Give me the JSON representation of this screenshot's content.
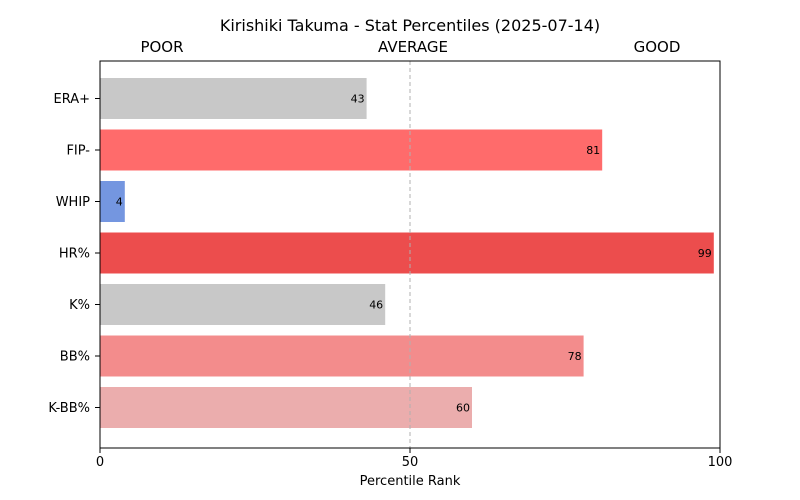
{
  "chart_data": {
    "type": "bar",
    "orientation": "horizontal",
    "title": "Kirishiki Takuma - Stat Percentiles (2025-07-14)",
    "xlabel": "Percentile Rank",
    "ylabel": "",
    "xlim": [
      0,
      100
    ],
    "xticks": [
      "0",
      "50",
      "100"
    ],
    "reference_line": 50,
    "grid": false,
    "zone_labels": [
      "POOR",
      "AVERAGE",
      "GOOD"
    ],
    "categories": [
      "ERA+",
      "FIP-",
      "WHIP",
      "HR%",
      "K%",
      "BB%",
      "K-BB%"
    ],
    "values": [
      43,
      81,
      4,
      99,
      46,
      78,
      60
    ],
    "value_labels": [
      "43",
      "81",
      "4",
      "99",
      "46",
      "78",
      "60"
    ],
    "colors": [
      "#c8c8c8",
      "#ff6b6b",
      "#7496e0",
      "#ec4d4d",
      "#c8c8c8",
      "#f38c8c",
      "#ebadad"
    ]
  }
}
